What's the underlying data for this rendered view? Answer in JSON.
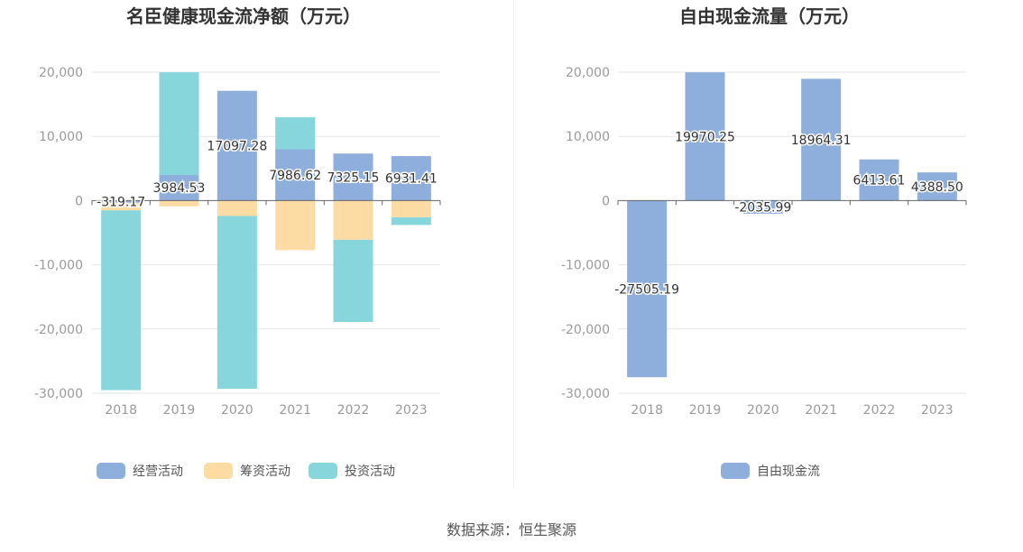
{
  "source": "数据来源：恒生聚源",
  "colors": {
    "operating": "#8eaedc",
    "financing": "#fddca4",
    "investing": "#86d6dc",
    "free": "#8eaedc",
    "grid": "#e6e6e6",
    "axis": "#666666"
  },
  "chart_data": [
    {
      "type": "bar",
      "stacked": true,
      "title": "名臣健康现金流净额（万元）",
      "categories": [
        "2018",
        "2019",
        "2020",
        "2021",
        "2022",
        "2023"
      ],
      "ylim": [
        -30000,
        20000
      ],
      "yticks": [
        20000,
        10000,
        0,
        -10000,
        -20000,
        -30000
      ],
      "ytick_labels": [
        "20,000",
        "10,000",
        "0",
        "-10,000",
        "-20,000",
        "-30,000"
      ],
      "series": [
        {
          "name": "经营活动",
          "color": "#8eaedc",
          "values": [
            -319.17,
            3984.53,
            17097.28,
            7986.62,
            7325.15,
            6931.41
          ]
        },
        {
          "name": "筹资活动",
          "color": "#fddca4",
          "values": [
            -1200,
            -900,
            -2400,
            -7700,
            -6100,
            -2600
          ]
        },
        {
          "name": "投资活动",
          "color": "#86d6dc",
          "values": [
            -28000,
            16000,
            -26900,
            5000,
            -12800,
            -1200
          ]
        }
      ],
      "data_labels": [
        "-319.17",
        "3984.53",
        "17097.28",
        "7986.62",
        "7325.15",
        "6931.41"
      ],
      "legend_position": "bottom",
      "grid": true
    },
    {
      "type": "bar",
      "title": "自由现金流量（万元）",
      "categories": [
        "2018",
        "2019",
        "2020",
        "2021",
        "2022",
        "2023"
      ],
      "ylim": [
        -30000,
        20000
      ],
      "yticks": [
        20000,
        10000,
        0,
        -10000,
        -20000,
        -30000
      ],
      "ytick_labels": [
        "20,000",
        "10,000",
        "0",
        "-10,000",
        "-20,000",
        "-30,000"
      ],
      "series": [
        {
          "name": "自由现金流",
          "color": "#8eaedc",
          "values": [
            -27505.19,
            19970.25,
            -2035.99,
            18964.31,
            6413.61,
            4388.5
          ]
        }
      ],
      "data_labels": [
        "-27505.19",
        "19970.25",
        "-2035.99",
        "18964.31",
        "6413.61",
        "4388.50"
      ],
      "legend_position": "bottom",
      "grid": true
    }
  ]
}
